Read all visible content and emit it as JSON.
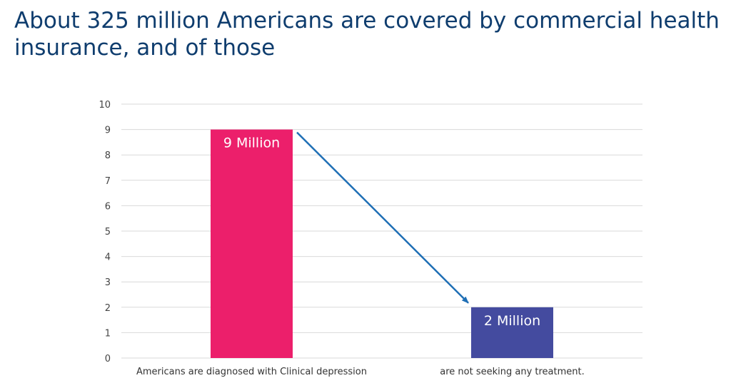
{
  "slide": {
    "title": "About 325 million Americans are covered by commercial health insurance, and of those"
  },
  "chart_data": {
    "type": "bar",
    "categories": [
      "Americans are diagnosed with Clinical depression",
      "are not seeking any treatment."
    ],
    "values": [
      9,
      2
    ],
    "data_labels": [
      "9 Million",
      "2 Million"
    ],
    "ylim": [
      0,
      10
    ],
    "yticks": [
      0,
      1,
      2,
      3,
      4,
      5,
      6,
      7,
      8,
      9,
      10
    ],
    "grid": true,
    "legend": "none",
    "annotation": "arrow from top of first bar to top of second bar",
    "colors": {
      "bars": [
        "#ec1f6b",
        "#444b9f"
      ],
      "arrow": "#1f6fb5",
      "grid": "#d9d9d9"
    }
  }
}
